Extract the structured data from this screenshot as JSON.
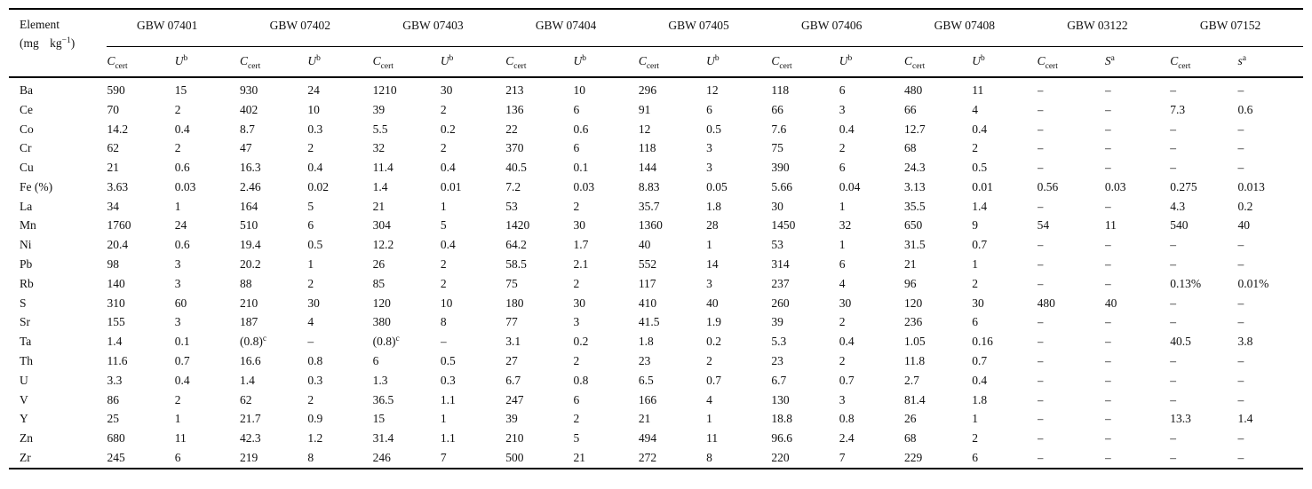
{
  "table": {
    "element_header": {
      "line1": "Element",
      "line2": "(mg kg^{−1})"
    },
    "groups": [
      {
        "name": "GBW 07401",
        "c": "C_{cert}",
        "u": "U^{b}"
      },
      {
        "name": "GBW 07402",
        "c": "C_{cert}",
        "u": "U^{b}"
      },
      {
        "name": "GBW 07403",
        "c": "C_{cert}",
        "u": "U^{b}"
      },
      {
        "name": "GBW 07404",
        "c": "C_{cert}",
        "u": "U^{b}"
      },
      {
        "name": "GBW 07405",
        "c": "C_{cert}",
        "u": "U^{b}"
      },
      {
        "name": "GBW 07406",
        "c": "C_{cert}",
        "u": "U^{b}"
      },
      {
        "name": "GBW 07408",
        "c": "C_{cert}",
        "u": "U^{b}"
      },
      {
        "name": "GBW 03122",
        "c": "C_{cert}",
        "u": "S^{a}"
      },
      {
        "name": "GBW 07152",
        "c": "C_{cert}",
        "u": "s^{a}"
      }
    ],
    "rows": [
      {
        "element": "Ba",
        "values": [
          "590",
          "15",
          "930",
          "24",
          "1210",
          "30",
          "213",
          "10",
          "296",
          "12",
          "118",
          "6",
          "480",
          "11",
          "–",
          "–",
          "–",
          "–"
        ]
      },
      {
        "element": "Ce",
        "values": [
          "70",
          "2",
          "402",
          "10",
          "39",
          "2",
          "136",
          "6",
          "91",
          "6",
          "66",
          "3",
          "66",
          "4",
          "–",
          "–",
          "7.3",
          "0.6"
        ]
      },
      {
        "element": "Co",
        "values": [
          "14.2",
          "0.4",
          "8.7",
          "0.3",
          "5.5",
          "0.2",
          "22",
          "0.6",
          "12",
          "0.5",
          "7.6",
          "0.4",
          "12.7",
          "0.4",
          "–",
          "–",
          "–",
          "–"
        ]
      },
      {
        "element": "Cr",
        "values": [
          "62",
          "2",
          "47",
          "2",
          "32",
          "2",
          "370",
          "6",
          "118",
          "3",
          "75",
          "2",
          "68",
          "2",
          "–",
          "–",
          "–",
          "–"
        ]
      },
      {
        "element": "Cu",
        "values": [
          "21",
          "0.6",
          "16.3",
          "0.4",
          "11.4",
          "0.4",
          "40.5",
          "0.1",
          "144",
          "3",
          "390",
          "6",
          "24.3",
          "0.5",
          "–",
          "–",
          "–",
          "–"
        ]
      },
      {
        "element": "Fe (%)",
        "values": [
          "3.63",
          "0.03",
          "2.46",
          "0.02",
          "1.4",
          "0.01",
          "7.2",
          "0.03",
          "8.83",
          "0.05",
          "5.66",
          "0.04",
          "3.13",
          "0.01",
          "0.56",
          "0.03",
          "0.275",
          "0.013"
        ]
      },
      {
        "element": "La",
        "values": [
          "34",
          "1",
          "164",
          "5",
          "21",
          "1",
          "53",
          "2",
          "35.7",
          "1.8",
          "30",
          "1",
          "35.5",
          "1.4",
          "–",
          "–",
          "4.3",
          "0.2"
        ]
      },
      {
        "element": "Mn",
        "values": [
          "1760",
          "24",
          "510",
          "6",
          "304",
          "5",
          "1420",
          "30",
          "1360",
          "28",
          "1450",
          "32",
          "650",
          "9",
          "54",
          "11",
          "540",
          "40"
        ]
      },
      {
        "element": "Ni",
        "values": [
          "20.4",
          "0.6",
          "19.4",
          "0.5",
          "12.2",
          "0.4",
          "64.2",
          "1.7",
          "40",
          "1",
          "53",
          "1",
          "31.5",
          "0.7",
          "–",
          "–",
          "–",
          "–"
        ]
      },
      {
        "element": "Pb",
        "values": [
          "98",
          "3",
          "20.2",
          "1",
          "26",
          "2",
          "58.5",
          "2.1",
          "552",
          "14",
          "314",
          "6",
          "21",
          "1",
          "–",
          "–",
          "–",
          "–"
        ]
      },
      {
        "element": "Rb",
        "values": [
          "140",
          "3",
          "88",
          "2",
          "85",
          "2",
          "75",
          "2",
          "117",
          "3",
          "237",
          "4",
          "96",
          "2",
          "–",
          "–",
          "0.13%",
          "0.01%"
        ]
      },
      {
        "element": "S",
        "values": [
          "310",
          "60",
          "210",
          "30",
          "120",
          "10",
          "180",
          "30",
          "410",
          "40",
          "260",
          "30",
          "120",
          "30",
          "480",
          "40",
          "–",
          "–"
        ]
      },
      {
        "element": "Sr",
        "values": [
          "155",
          "3",
          "187",
          "4",
          "380",
          "8",
          "77",
          "3",
          "41.5",
          "1.9",
          "39",
          "2",
          "236",
          "6",
          "–",
          "–",
          "–",
          "–"
        ]
      },
      {
        "element": "Ta",
        "values": [
          "1.4",
          "0.1",
          "(0.8)^{c}",
          "–",
          "(0.8)^{c}",
          "–",
          "3.1",
          "0.2",
          "1.8",
          "0.2",
          "5.3",
          "0.4",
          "1.05",
          "0.16",
          "–",
          "–",
          "40.5",
          "3.8"
        ]
      },
      {
        "element": "Th",
        "values": [
          "11.6",
          "0.7",
          "16.6",
          "0.8",
          "6",
          "0.5",
          "27",
          "2",
          "23",
          "2",
          "23",
          "2",
          "11.8",
          "0.7",
          "–",
          "–",
          "–",
          "–"
        ]
      },
      {
        "element": "U",
        "values": [
          "3.3",
          "0.4",
          "1.4",
          "0.3",
          "1.3",
          "0.3",
          "6.7",
          "0.8",
          "6.5",
          "0.7",
          "6.7",
          "0.7",
          "2.7",
          "0.4",
          "–",
          "–",
          "–",
          "–"
        ]
      },
      {
        "element": "V",
        "values": [
          "86",
          "2",
          "62",
          "2",
          "36.5",
          "1.1",
          "247",
          "6",
          "166",
          "4",
          "130",
          "3",
          "81.4",
          "1.8",
          "–",
          "–",
          "–",
          "–"
        ]
      },
      {
        "element": "Y",
        "values": [
          "25",
          "1",
          "21.7",
          "0.9",
          "15",
          "1",
          "39",
          "2",
          "21",
          "1",
          "18.8",
          "0.8",
          "26",
          "1",
          "–",
          "–",
          "13.3",
          "1.4"
        ]
      },
      {
        "element": "Zn",
        "values": [
          "680",
          "11",
          "42.3",
          "1.2",
          "31.4",
          "1.1",
          "210",
          "5",
          "494",
          "11",
          "96.6",
          "2.4",
          "68",
          "2",
          "–",
          "–",
          "–",
          "–"
        ]
      },
      {
        "element": "Zr",
        "values": [
          "245",
          "6",
          "219",
          "8",
          "246",
          "7",
          "500",
          "21",
          "272",
          "8",
          "220",
          "7",
          "229",
          "6",
          "–",
          "–",
          "–",
          "–"
        ]
      }
    ]
  }
}
